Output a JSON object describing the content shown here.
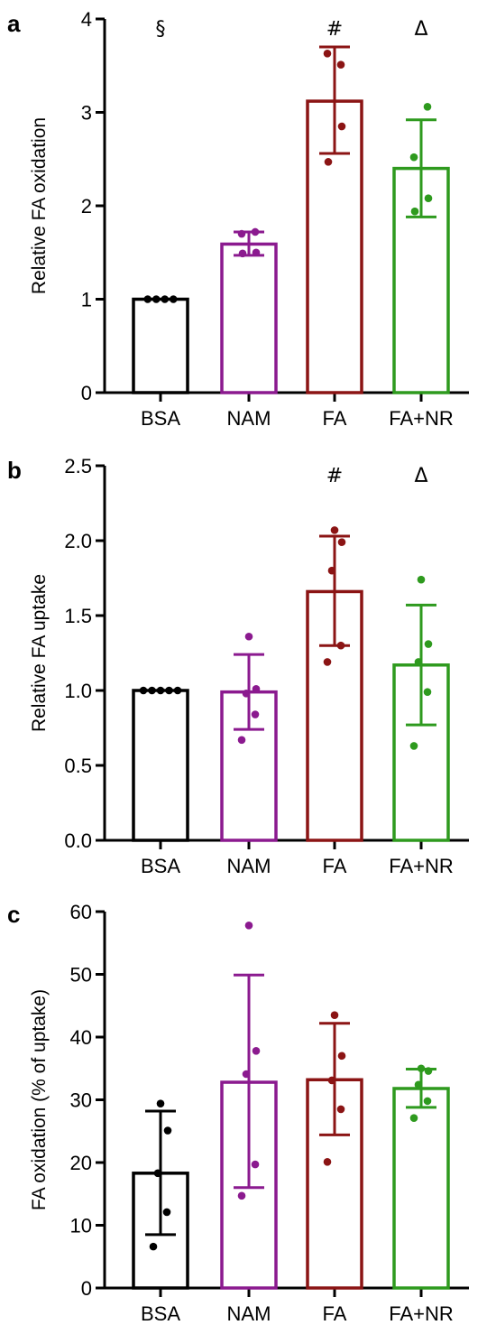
{
  "colors": {
    "BSA": "#000000",
    "NAM": "#8B1A8F",
    "FA": "#8B1414",
    "FA+NR": "#2E9A1E"
  },
  "chart_data": [
    {
      "type": "bar",
      "panel": "a",
      "ylabel": "Relative FA oxidation",
      "ylim": [
        0,
        4
      ],
      "yticks": [
        "0",
        "1",
        "2",
        "3",
        "4"
      ],
      "categories": [
        "BSA",
        "NAM",
        "FA",
        "FA+NR"
      ],
      "values": [
        1.0,
        1.59,
        3.12,
        2.4
      ],
      "error": [
        [
          1.0,
          1.0
        ],
        [
          1.47,
          1.72
        ],
        [
          2.56,
          3.7
        ],
        [
          1.88,
          2.92
        ]
      ],
      "points": [
        [
          1.0,
          1.0,
          1.0,
          1.0
        ],
        [
          1.49,
          1.5,
          1.7,
          1.72
        ],
        [
          2.47,
          2.85,
          3.63,
          3.51
        ],
        [
          1.94,
          2.08,
          2.52,
          3.06
        ]
      ],
      "annotations": [
        "§",
        "",
        "#",
        "Δ"
      ]
    },
    {
      "type": "bar",
      "panel": "b",
      "ylabel": "Relative FA uptake",
      "ylim": [
        0,
        2.5
      ],
      "yticks": [
        "0.0",
        "0.5",
        "1.0",
        "1.5",
        "2.0",
        "2.5"
      ],
      "categories": [
        "BSA",
        "NAM",
        "FA",
        "FA+NR"
      ],
      "values": [
        1.0,
        0.99,
        1.66,
        1.17
      ],
      "error": [
        [
          1.0,
          1.0
        ],
        [
          0.74,
          1.24
        ],
        [
          1.3,
          2.03
        ],
        [
          0.77,
          1.57
        ]
      ],
      "points": [
        [
          1.0,
          1.0,
          1.0,
          1.0,
          1.0
        ],
        [
          0.67,
          0.84,
          0.98,
          1.01,
          1.36
        ],
        [
          1.19,
          1.3,
          1.8,
          1.99,
          2.07
        ],
        [
          0.63,
          0.99,
          1.19,
          1.31,
          1.74
        ]
      ],
      "annotations": [
        "",
        "",
        "#",
        "Δ"
      ]
    },
    {
      "type": "bar",
      "panel": "c",
      "ylabel": "FA oxidation (% of uptake)",
      "ylim": [
        0,
        60
      ],
      "yticks": [
        "0",
        "10",
        "20",
        "30",
        "40",
        "50",
        "60"
      ],
      "categories": [
        "BSA",
        "NAM",
        "FA",
        "FA+NR"
      ],
      "values": [
        18.3,
        32.8,
        33.2,
        31.8
      ],
      "error": [
        [
          8.5,
          28.2
        ],
        [
          16.0,
          49.9
        ],
        [
          24.4,
          42.2
        ],
        [
          28.8,
          34.9
        ]
      ],
      "points": [
        [
          6.6,
          12.1,
          18.3,
          25.1,
          29.4
        ],
        [
          14.7,
          19.7,
          34.1,
          37.8,
          57.8
        ],
        [
          20.1,
          28.5,
          33.1,
          37.0,
          43.5
        ],
        [
          27.1,
          29.8,
          32.4,
          34.6,
          35.0
        ]
      ],
      "annotations": [
        "",
        "",
        "",
        ""
      ]
    }
  ]
}
